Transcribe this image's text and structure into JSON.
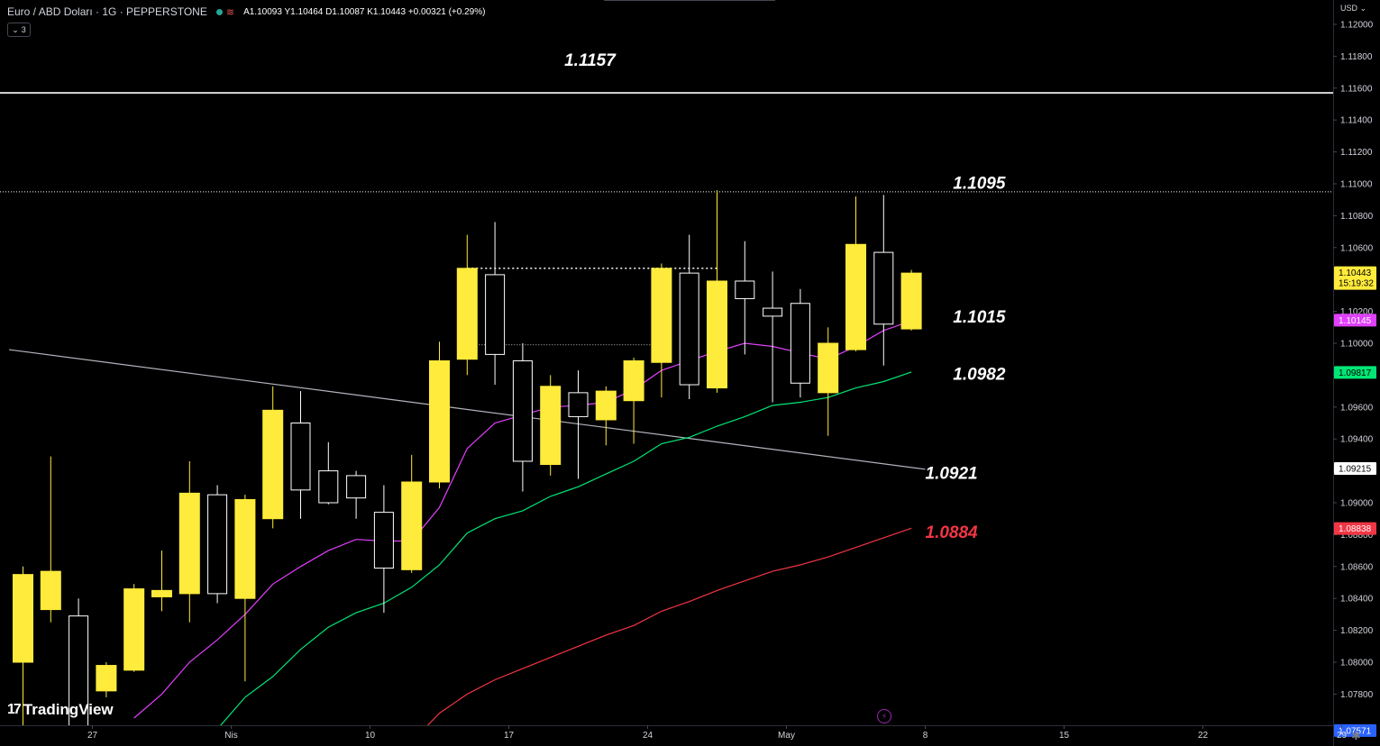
{
  "header": {
    "symbol": "Euro / ABD Doları · 1G · PEPPERSTONE",
    "ohlc": "A1.10093  Y1.10464  D1.10087  K1.10443  +0.00321 (+0.29%)",
    "indicators_count": "3"
  },
  "currency_label": "USD",
  "logo_text": "TradingView",
  "colors": {
    "background": "#000000",
    "bull_candle": "#ffeb3b",
    "bear_candle_border": "#ffffff",
    "ma_fast": "#e040fb",
    "ma_mid": "#00e676",
    "ma_slow": "#f23645",
    "trendline": "#b2b5be"
  },
  "chart_data": {
    "type": "candlestick",
    "y_axis": {
      "min": 1.0748,
      "max": 1.121,
      "ticks": [
        "1.12000",
        "1.11800",
        "1.11600",
        "1.11400",
        "1.11200",
        "1.11000",
        "1.10800",
        "1.10600",
        "1.10400",
        "1.10200",
        "1.10000",
        "1.09800",
        "1.09600",
        "1.09400",
        "1.09200",
        "1.09000",
        "1.08800",
        "1.08600",
        "1.08400",
        "1.08200",
        "1.08000",
        "1.07800"
      ],
      "tick_values": [
        1.12,
        1.118,
        1.116,
        1.114,
        1.112,
        1.11,
        1.108,
        1.106,
        1.104,
        1.102,
        1.1,
        1.098,
        1.096,
        1.094,
        1.092,
        1.09,
        1.088,
        1.086,
        1.084,
        1.082,
        1.08,
        1.078
      ]
    },
    "x_axis": {
      "labels": [
        {
          "text": "27",
          "index": 2.5
        },
        {
          "text": "Nis",
          "index": 7.5
        },
        {
          "text": "10",
          "index": 12.5
        },
        {
          "text": "17",
          "index": 17.5
        },
        {
          "text": "24",
          "index": 22.5
        },
        {
          "text": "May",
          "index": 27.5
        },
        {
          "text": "8",
          "index": 32.5
        },
        {
          "text": "15",
          "index": 37.5
        },
        {
          "text": "22",
          "index": 42.5
        },
        {
          "text": "29",
          "index": 47.5
        }
      ]
    },
    "candles": [
      {
        "o": 1.08,
        "h": 1.086,
        "l": 1.0755,
        "c": 1.0855
      },
      {
        "o": 1.0833,
        "h": 1.0929,
        "l": 1.0825,
        "c": 1.0857
      },
      {
        "o": 1.0829,
        "h": 1.084,
        "l": 1.076,
        "c": 1.0758
      },
      {
        "o": 1.0782,
        "h": 1.08,
        "l": 1.0778,
        "c": 1.0798
      },
      {
        "o": 1.0795,
        "h": 1.0849,
        "l": 1.0794,
        "c": 1.0846
      },
      {
        "o": 1.0841,
        "h": 1.087,
        "l": 1.0832,
        "c": 1.0845
      },
      {
        "o": 1.0843,
        "h": 1.0926,
        "l": 1.0825,
        "c": 1.0906
      },
      {
        "o": 1.0905,
        "h": 1.0911,
        "l": 1.0837,
        "c": 1.0843
      },
      {
        "o": 1.084,
        "h": 1.0905,
        "l": 1.0788,
        "c": 1.0902
      },
      {
        "o": 1.089,
        "h": 1.0973,
        "l": 1.0884,
        "c": 1.0958
      },
      {
        "o": 1.095,
        "h": 1.097,
        "l": 1.089,
        "c": 1.0908
      },
      {
        "o": 1.092,
        "h": 1.0938,
        "l": 1.0899,
        "c": 1.09
      },
      {
        "o": 1.0917,
        "h": 1.092,
        "l": 1.089,
        "c": 1.0903
      },
      {
        "o": 1.0894,
        "h": 1.0911,
        "l": 1.0831,
        "c": 1.0859
      },
      {
        "o": 1.0858,
        "h": 1.093,
        "l": 1.0856,
        "c": 1.0913
      },
      {
        "o": 1.0913,
        "h": 1.1001,
        "l": 1.0909,
        "c": 1.0989
      },
      {
        "o": 1.099,
        "h": 1.1068,
        "l": 1.098,
        "c": 1.1047
      },
      {
        "o": 1.1043,
        "h": 1.1076,
        "l": 1.0974,
        "c": 1.0993
      },
      {
        "o": 1.0989,
        "h": 1.1,
        "l": 1.0907,
        "c": 1.0926
      },
      {
        "o": 1.0924,
        "h": 1.098,
        "l": 1.0917,
        "c": 1.0973
      },
      {
        "o": 1.0969,
        "h": 1.0983,
        "l": 1.0915,
        "c": 1.0954
      },
      {
        "o": 1.0952,
        "h": 1.0973,
        "l": 1.0936,
        "c": 1.097
      },
      {
        "o": 1.0964,
        "h": 1.0991,
        "l": 1.0937,
        "c": 1.0989
      },
      {
        "o": 1.0988,
        "h": 1.105,
        "l": 1.0966,
        "c": 1.1047
      },
      {
        "o": 1.1044,
        "h": 1.1068,
        "l": 1.0965,
        "c": 1.0974
      },
      {
        "o": 1.0972,
        "h": 1.1096,
        "l": 1.0969,
        "c": 1.1039
      },
      {
        "o": 1.1039,
        "h": 1.1064,
        "l": 1.0993,
        "c": 1.1028
      },
      {
        "o": 1.1022,
        "h": 1.1045,
        "l": 1.0963,
        "c": 1.1017
      },
      {
        "o": 1.1025,
        "h": 1.1034,
        "l": 1.0966,
        "c": 1.0975
      },
      {
        "o": 1.0969,
        "h": 1.101,
        "l": 1.0942,
        "c": 1.1
      },
      {
        "o": 1.0996,
        "h": 1.1092,
        "l": 1.0995,
        "c": 1.1062
      },
      {
        "o": 1.1057,
        "h": 1.1093,
        "l": 1.0986,
        "c": 1.1012
      },
      {
        "o": 1.1009,
        "h": 1.1046,
        "l": 1.1008,
        "c": 1.1044
      }
    ],
    "ma_fast": [
      null,
      null,
      null,
      null,
      1.0765,
      1.078,
      1.08,
      1.0814,
      1.083,
      1.0849,
      1.086,
      1.087,
      1.0877,
      1.0876,
      1.0876,
      1.0897,
      1.0934,
      1.095,
      1.0955,
      1.096,
      1.0961,
      1.0963,
      1.0971,
      1.0983,
      1.0989,
      1.0995,
      1.1,
      1.0998,
      1.0994,
      1.099,
      1.0998,
      1.1008,
      1.1014
    ],
    "ma_mid": [
      null,
      null,
      null,
      null,
      null,
      null,
      null,
      1.0758,
      1.0778,
      1.0791,
      1.0808,
      1.0822,
      1.0831,
      1.0837,
      1.0847,
      1.0861,
      1.0881,
      1.089,
      1.0895,
      1.0904,
      1.091,
      1.0918,
      1.0926,
      1.0937,
      1.0941,
      1.0948,
      1.0954,
      1.0961,
      1.0963,
      1.0966,
      1.0972,
      1.0976,
      1.0982
    ],
    "ma_slow": [
      null,
      null,
      null,
      null,
      null,
      null,
      null,
      null,
      null,
      null,
      null,
      null,
      null,
      null,
      1.075,
      1.0768,
      1.078,
      1.0789,
      1.0796,
      1.0803,
      1.081,
      1.0817,
      1.0823,
      1.0832,
      1.0838,
      1.0845,
      1.0851,
      1.0857,
      1.0861,
      1.0866,
      1.0872,
      1.0878,
      1.0884
    ],
    "trendline": {
      "from": {
        "i": -0.5,
        "v": 1.0996
      },
      "to": {
        "i": 32.5,
        "v": 1.0921
      }
    },
    "horizontal_lines": [
      {
        "value": 1.1157,
        "style": "solid",
        "label": "1.1157",
        "color": "#ffffff"
      },
      {
        "value": 1.1095,
        "style": "dotted",
        "label": "1.1095",
        "color": "#ffffff"
      }
    ],
    "range_box": {
      "from_i": 16,
      "to_i": 25,
      "top": 1.1047,
      "bottom": 1.0999
    },
    "annotations": [
      {
        "text": "1.1157",
        "i": 19.5,
        "v": 1.1174,
        "color": "#ffffff"
      },
      {
        "text": "1.1095",
        "i": 33.5,
        "v": 1.1097,
        "color": "#ffffff"
      },
      {
        "text": "1.1015",
        "i": 33.5,
        "v": 1.1013,
        "color": "#ffffff"
      },
      {
        "text": "1.0982",
        "i": 33.5,
        "v": 1.0977,
        "color": "#ffffff"
      },
      {
        "text": "1.0921",
        "i": 32.5,
        "v": 1.0915,
        "color": "#ffffff"
      },
      {
        "text": "1.0884",
        "i": 32.5,
        "v": 1.0878,
        "color": "#f23645"
      }
    ],
    "price_badges": [
      {
        "text": "1.10443",
        "sub": "15:19:32",
        "value": 1.10443,
        "bg": "#ffeb3b",
        "fg": "#000000"
      },
      {
        "text": "1.10145",
        "value": 1.10145,
        "bg": "#e040fb",
        "fg": "#ffffff"
      },
      {
        "text": "1.09817",
        "value": 1.09817,
        "bg": "#00e676",
        "fg": "#000000"
      },
      {
        "text": "1.09215",
        "value": 1.09215,
        "bg": "#ffffff",
        "fg": "#000000"
      },
      {
        "text": "1.08838",
        "value": 1.08838,
        "bg": "#f23645",
        "fg": "#ffffff"
      },
      {
        "text": "1.07571",
        "value": 1.07571,
        "bg": "#2962ff",
        "fg": "#ffffff"
      }
    ]
  }
}
